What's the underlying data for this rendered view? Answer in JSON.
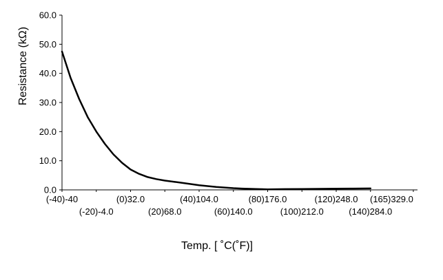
{
  "chart_data": {
    "type": "line",
    "title": "",
    "xlabel": "Temp. [ ˚C(˚F)]",
    "ylabel": "Resistance (kΩ)",
    "ylim": [
      0,
      60
    ],
    "xlim": [
      -40,
      165
    ],
    "y_ticks": [
      "0.0",
      "10.0",
      "20.0",
      "30.0",
      "40.0",
      "50.0",
      "60.0"
    ],
    "x_ticks": [
      {
        "celsius": -40,
        "label": "(-40)-40"
      },
      {
        "celsius": -20,
        "label": "(-20)-4.0"
      },
      {
        "celsius": 0,
        "label": "(0)32.0"
      },
      {
        "celsius": 20,
        "label": "(20)68.0"
      },
      {
        "celsius": 40,
        "label": "(40)104.0"
      },
      {
        "celsius": 60,
        "label": "(60)140.0"
      },
      {
        "celsius": 80,
        "label": "(80)176.0"
      },
      {
        "celsius": 100,
        "label": "(100)212.0"
      },
      {
        "celsius": 120,
        "label": "(120)248.0"
      },
      {
        "celsius": 140,
        "label": "(140)284.0"
      },
      {
        "celsius": 165,
        "label": "(165)329.0"
      }
    ],
    "grid": false,
    "legend": "none",
    "series": [
      {
        "color": "#000000",
        "x": [
          -40,
          -35,
          -30,
          -25,
          -20,
          -15,
          -10,
          -5,
          0,
          5,
          10,
          15,
          20,
          25,
          30,
          35,
          40,
          45,
          50,
          55,
          60,
          65,
          70,
          75,
          80,
          90,
          100,
          110,
          120,
          130,
          140
        ],
        "y": [
          47.5,
          38.5,
          31.2,
          25.0,
          20.0,
          15.8,
          12.2,
          9.3,
          7.0,
          5.5,
          4.4,
          3.7,
          3.2,
          2.8,
          2.4,
          2.0,
          1.6,
          1.3,
          1.0,
          0.8,
          0.6,
          0.45,
          0.35,
          0.25,
          0.2,
          0.25,
          0.3,
          0.35,
          0.4,
          0.45,
          0.5
        ]
      }
    ]
  }
}
